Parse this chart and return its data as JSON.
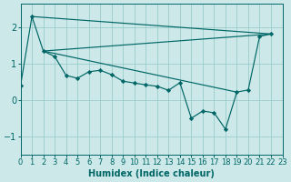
{
  "xlabel": "Humidex (Indice chaleur)",
  "bg_color": "#cce8e8",
  "line_color": "#006666",
  "grid_color": "#99cccc",
  "xlim": [
    0,
    23
  ],
  "ylim": [
    -1.5,
    2.65
  ],
  "yticks": [
    -1,
    0,
    1,
    2
  ],
  "xticks": [
    0,
    1,
    2,
    3,
    4,
    5,
    6,
    7,
    8,
    9,
    10,
    11,
    12,
    13,
    14,
    15,
    16,
    17,
    18,
    19,
    20,
    21,
    22,
    23
  ],
  "line1_x": [
    0,
    1,
    2,
    3,
    4,
    5,
    6,
    7,
    8,
    9,
    10,
    11,
    12,
    13,
    14,
    15,
    16,
    17,
    18,
    19,
    20,
    21,
    22
  ],
  "line1_y": [
    0.4,
    2.3,
    1.35,
    1.2,
    0.68,
    0.6,
    0.78,
    0.82,
    0.7,
    0.52,
    0.47,
    0.42,
    0.38,
    0.27,
    0.48,
    -0.5,
    -0.3,
    -0.35,
    -0.8,
    0.22,
    0.28,
    1.75,
    1.82
  ],
  "line2_x": [
    1,
    22
  ],
  "line2_y": [
    2.3,
    1.82
  ],
  "line3_x": [
    2,
    19
  ],
  "line3_y": [
    1.35,
    0.22
  ],
  "line4_x": [
    2,
    22
  ],
  "line4_y": [
    1.35,
    1.82
  ]
}
